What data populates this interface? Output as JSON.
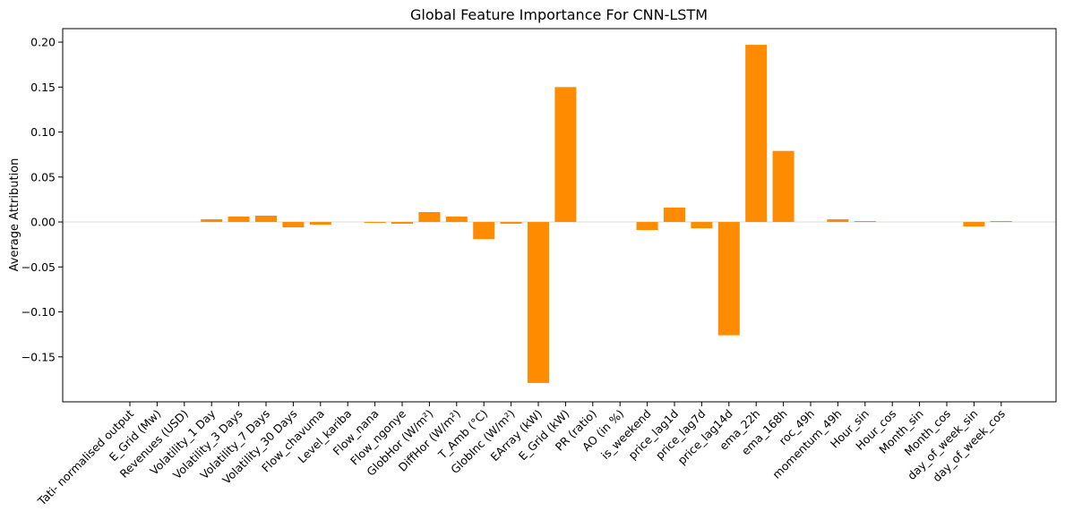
{
  "chart_data": {
    "type": "bar",
    "title": "Global Feature Importance For CNN-LSTM",
    "xlabel": "",
    "ylabel": "Average Attribution",
    "ylim": [
      -0.2,
      0.215
    ],
    "yticks": [
      -0.15,
      -0.1,
      -0.05,
      0.0,
      0.05,
      0.1,
      0.15,
      0.2
    ],
    "ytick_labels": [
      "−0.15",
      "−0.10",
      "−0.05",
      "0.00",
      "0.05",
      "0.10",
      "0.15",
      "0.20"
    ],
    "bar_color": "#ff8c00",
    "zero_line": true,
    "categories": [
      "Tati- normalised output",
      "E_Grid (Mw)",
      "Revenues (USD)",
      "Volatility_1 Day",
      "Volatility_3 Days",
      "Volatility_7 Days",
      "Volatility_30 Days",
      "Flow_chavuma",
      "Level_kariba",
      "Flow_nana",
      "Flow_ngonye",
      "GlobHor (W/m²)",
      "DiffHor (W/m²)",
      "T_Amb (°C)",
      "GlobInc (W/m²)",
      "EArray (kW)",
      "E_Grid (kW)",
      "PR (ratio)",
      "AO (in %)",
      "is_weekend",
      "price_lag1d",
      "price_lag7d",
      "price_lag14d",
      "ema_22h",
      "ema_168h",
      "roc_49h",
      "momentum_49h",
      "Hour_sin",
      "Hour_cos",
      "Month_sin",
      "Month_cos",
      "day_of_week_sin",
      "day_of_week_cos"
    ],
    "values": [
      0,
      0,
      0,
      0.003,
      0.006,
      0.007,
      -0.006,
      -0.003,
      0,
      -0.001,
      -0.002,
      0.011,
      0.006,
      -0.019,
      -0.002,
      -0.179,
      0.15,
      0,
      0,
      -0.009,
      0.016,
      -0.007,
      -0.126,
      0.197,
      0.079,
      0,
      0.003,
      0.001,
      0,
      0,
      0,
      -0.005,
      0.001
    ]
  }
}
